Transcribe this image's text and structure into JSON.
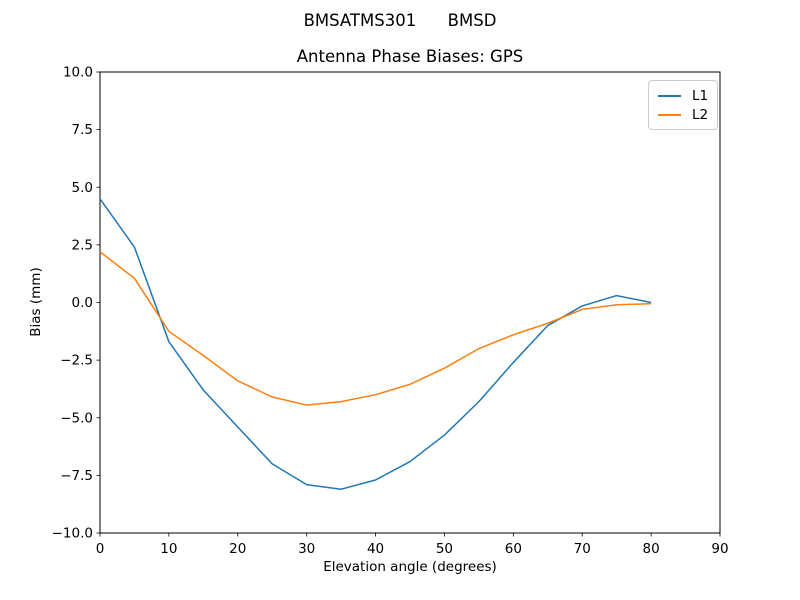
{
  "chart_data": {
    "type": "line",
    "suptitle": "BMSATMS301      BMSD",
    "title": "Antenna Phase Biases: GPS",
    "xlabel": "Elevation angle (degrees)",
    "ylabel": "Bias (mm)",
    "xlim": [
      0,
      90
    ],
    "ylim": [
      -10.0,
      10.0
    ],
    "xticks": [
      0,
      10,
      20,
      30,
      40,
      50,
      60,
      70,
      80,
      90
    ],
    "yticks": [
      -10.0,
      -7.5,
      -5.0,
      -2.5,
      0.0,
      2.5,
      5.0,
      7.5,
      10.0
    ],
    "grid": false,
    "legend_position": "upper right",
    "x": [
      0,
      5,
      10,
      15,
      20,
      25,
      30,
      35,
      40,
      45,
      50,
      55,
      60,
      65,
      70,
      75,
      80
    ],
    "series": [
      {
        "name": "L1",
        "color": "#1f77b4",
        "values": [
          4.5,
          2.4,
          -1.7,
          -3.8,
          -5.4,
          -7.0,
          -7.9,
          -8.1,
          -7.7,
          -6.9,
          -5.75,
          -4.3,
          -2.6,
          -1.0,
          -0.15,
          0.3,
          0.0
        ]
      },
      {
        "name": "L2",
        "color": "#ff7f0e",
        "values": [
          2.2,
          1.05,
          -1.25,
          -2.3,
          -3.4,
          -4.1,
          -4.45,
          -4.3,
          -4.0,
          -3.55,
          -2.85,
          -2.0,
          -1.4,
          -0.9,
          -0.3,
          -0.1,
          -0.05
        ]
      }
    ]
  }
}
